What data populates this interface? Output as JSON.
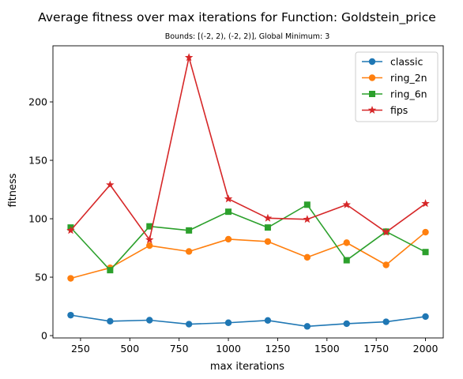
{
  "chart_data": {
    "type": "line",
    "title": "Average fitness over max iterations for Function: Goldstein_price",
    "subtitle": "Bounds: [(-2, 2), (-2, 2)], Global Minimum: 3",
    "xlabel": "max iterations",
    "ylabel": "fitness",
    "x": [
      200,
      400,
      600,
      800,
      1000,
      1200,
      1400,
      1600,
      1800,
      2000
    ],
    "xlim": [
      110,
      2090
    ],
    "ylim": [
      -2,
      248
    ],
    "xticks": [
      250,
      500,
      750,
      1000,
      1250,
      1500,
      1750,
      2000
    ],
    "yticks": [
      0,
      50,
      100,
      150,
      200
    ],
    "grid": false,
    "legend_position": "top-right",
    "series": [
      {
        "name": "classic",
        "color": "#1f77b4",
        "marker": "circle",
        "values": [
          17.5,
          12.3,
          13.2,
          9.8,
          11.0,
          13.0,
          7.9,
          10.2,
          11.8,
          16.3
        ]
      },
      {
        "name": "ring_2n",
        "color": "#ff7f0e",
        "marker": "circle",
        "values": [
          49.0,
          58.0,
          77.0,
          72.0,
          82.5,
          80.5,
          67.0,
          79.5,
          60.5,
          88.5
        ]
      },
      {
        "name": "ring_6n",
        "color": "#2ca02c",
        "marker": "square",
        "values": [
          92.5,
          56.0,
          93.5,
          90.0,
          106.0,
          92.5,
          112.0,
          64.5,
          89.0,
          71.5
        ]
      },
      {
        "name": "fips",
        "color": "#d62728",
        "marker": "star",
        "values": [
          90.0,
          129.0,
          82.0,
          238.0,
          117.0,
          100.5,
          99.5,
          112.0,
          88.5,
          113.0
        ]
      }
    ]
  }
}
